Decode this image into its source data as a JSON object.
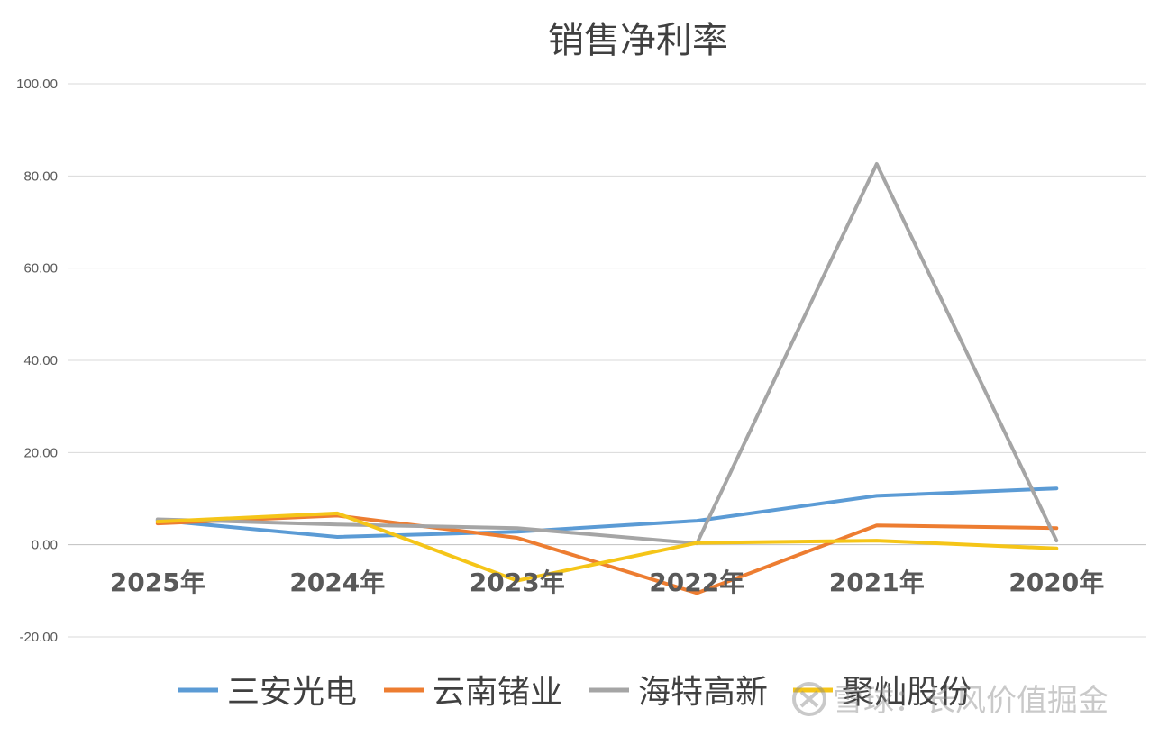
{
  "chart_data": {
    "type": "line",
    "title": "销售净利率",
    "categories": [
      "2025年",
      "2024年",
      "2023年",
      "2022年",
      "2021年",
      "2020年"
    ],
    "ylim": [
      -20,
      100
    ],
    "yticks": [
      "100.00",
      "80.00",
      "60.00",
      "40.00",
      "20.00",
      "0.00",
      "-20.00"
    ],
    "ytick_values": [
      100,
      80,
      60,
      40,
      20,
      0,
      -20
    ],
    "grid": true,
    "legend_position": "bottom",
    "series": [
      {
        "name": "三安光电",
        "color": "#5b9bd5",
        "values": [
          5.3,
          1.7,
          2.8,
          5.2,
          10.6,
          12.2
        ]
      },
      {
        "name": "云南锗业",
        "color": "#ed7d31",
        "values": [
          4.6,
          6.3,
          1.5,
          -10.5,
          4.2,
          3.6
        ]
      },
      {
        "name": "海特高新",
        "color": "#a5a5a5",
        "values": [
          5.5,
          4.4,
          3.6,
          0.3,
          82.6,
          0.9
        ]
      },
      {
        "name": "聚灿股份",
        "color": "#f5c518",
        "values": [
          5.0,
          6.8,
          -7.8,
          0.4,
          0.9,
          -0.8
        ]
      }
    ]
  },
  "watermark": {
    "text": "雪球：长风价值掘金",
    "icon": "snowball-logo-icon"
  }
}
